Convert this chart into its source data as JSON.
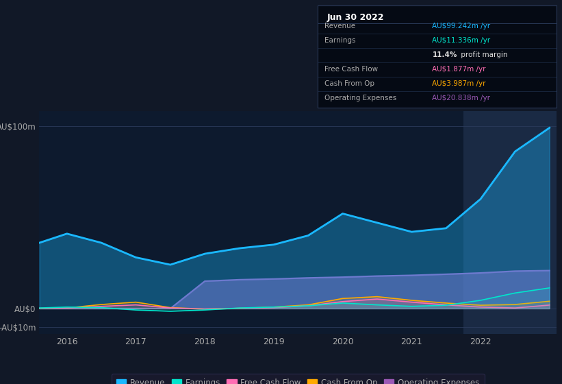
{
  "bg_color": "#111827",
  "plot_bg_color": "#0d1a2e",
  "highlight_bg": "#1a2a44",
  "grid_color": "#2a3a5a",
  "text_color": "#aaaaaa",
  "ytick_labels": [
    "AU$100m",
    "AU$0",
    "-AU$10m"
  ],
  "ytick_values": [
    100,
    0,
    -10
  ],
  "ylim": [
    -14,
    108
  ],
  "xlim": [
    2015.6,
    2023.1
  ],
  "xtick_labels": [
    "2016",
    "2017",
    "2018",
    "2019",
    "2020",
    "2021",
    "2022"
  ],
  "xtick_values": [
    2016,
    2017,
    2018,
    2019,
    2020,
    2021,
    2022
  ],
  "series": {
    "Revenue": {
      "color": "#1ab8ff",
      "fill_alpha": 0.35,
      "x": [
        2015.6,
        2016.0,
        2016.5,
        2017.0,
        2017.5,
        2018.0,
        2018.5,
        2019.0,
        2019.5,
        2020.0,
        2020.5,
        2021.0,
        2021.5,
        2022.0,
        2022.5,
        2023.0
      ],
      "y": [
        36,
        41,
        36,
        28,
        24,
        30,
        33,
        35,
        40,
        52,
        47,
        42,
        44,
        60,
        86,
        99
      ]
    },
    "Earnings": {
      "color": "#00e5cc",
      "fill_alpha": 0.12,
      "x": [
        2015.6,
        2016.0,
        2016.5,
        2017.0,
        2017.5,
        2018.0,
        2018.5,
        2019.0,
        2019.5,
        2020.0,
        2020.5,
        2021.0,
        2021.5,
        2022.0,
        2022.5,
        2023.0
      ],
      "y": [
        0.3,
        0.8,
        0.5,
        -0.8,
        -1.5,
        -0.8,
        0.3,
        0.8,
        1.5,
        3.0,
        2.0,
        1.2,
        1.8,
        4.5,
        8.5,
        11.3
      ]
    },
    "FreeCashFlow": {
      "color": "#ff6eb4",
      "fill_alpha": 0.12,
      "x": [
        2015.6,
        2016.0,
        2016.5,
        2017.0,
        2017.5,
        2018.0,
        2018.5,
        2019.0,
        2019.5,
        2020.0,
        2020.5,
        2021.0,
        2021.5,
        2022.0,
        2022.5,
        2023.0
      ],
      "y": [
        0.1,
        0.3,
        1.2,
        2.0,
        0.3,
        -0.3,
        0.1,
        0.5,
        1.5,
        3.8,
        5.2,
        3.5,
        2.0,
        0.8,
        0.3,
        1.9
      ]
    },
    "CashFromOp": {
      "color": "#ffaa00",
      "fill_alpha": 0.12,
      "x": [
        2015.6,
        2016.0,
        2016.5,
        2017.0,
        2017.5,
        2018.0,
        2018.5,
        2019.0,
        2019.5,
        2020.0,
        2020.5,
        2021.0,
        2021.5,
        2022.0,
        2022.5,
        2023.0
      ],
      "y": [
        0.1,
        0.3,
        2.2,
        3.5,
        0.5,
        -0.3,
        0.1,
        0.8,
        2.0,
        5.5,
        6.5,
        4.5,
        3.0,
        1.8,
        2.2,
        4.0
      ]
    },
    "OperatingExpenses": {
      "color": "#9b59b6",
      "fill_alpha": 0.55,
      "x": [
        2015.6,
        2016.0,
        2016.5,
        2017.0,
        2017.5,
        2018.0,
        2018.5,
        2019.0,
        2019.5,
        2020.0,
        2020.5,
        2021.0,
        2021.5,
        2022.0,
        2022.5,
        2023.0
      ],
      "y": [
        0,
        0,
        0,
        0,
        0,
        15.0,
        15.8,
        16.2,
        16.8,
        17.2,
        17.8,
        18.2,
        18.8,
        19.5,
        20.5,
        20.8
      ]
    }
  },
  "highlight_x_start": 2021.75,
  "highlight_x_end": 2023.1,
  "info_box": {
    "title": "Jun 30 2022",
    "bg_color": "#050a14",
    "border_color": "#2a3a5a",
    "rows": [
      {
        "label": "Revenue",
        "value": "AU$99.242m /yr",
        "value_color": "#1ab8ff",
        "bold_part": ""
      },
      {
        "label": "Earnings",
        "value": "AU$11.336m /yr",
        "value_color": "#00e5cc",
        "bold_part": ""
      },
      {
        "label": "",
        "value": "11.4% profit margin",
        "value_color": "#dddddd",
        "bold_part": "11.4%"
      },
      {
        "label": "Free Cash Flow",
        "value": "AU$1.877m /yr",
        "value_color": "#ff6eb4",
        "bold_part": ""
      },
      {
        "label": "Cash From Op",
        "value": "AU$3.987m /yr",
        "value_color": "#ffaa00",
        "bold_part": ""
      },
      {
        "label": "Operating Expenses",
        "value": "AU$20.838m /yr",
        "value_color": "#9b59b6",
        "bold_part": ""
      }
    ]
  },
  "legend_items": [
    {
      "label": "Revenue",
      "color": "#1ab8ff"
    },
    {
      "label": "Earnings",
      "color": "#00e5cc"
    },
    {
      "label": "Free Cash Flow",
      "color": "#ff6eb4"
    },
    {
      "label": "Cash From Op",
      "color": "#ffaa00"
    },
    {
      "label": "Operating Expenses",
      "color": "#9b59b6"
    }
  ]
}
